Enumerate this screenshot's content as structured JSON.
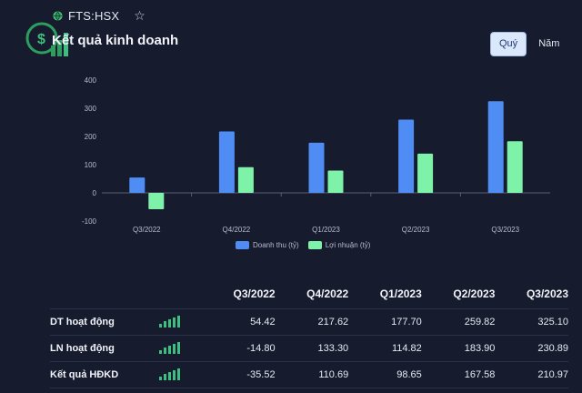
{
  "header": {
    "ticker": "FTS:HSX",
    "globe_icon": "globe-icon",
    "favorite_icon": "star-outline-icon"
  },
  "page": {
    "title": "Kết quả kinh doanh"
  },
  "period_toggle": {
    "options": [
      "Quý",
      "Năm"
    ],
    "selected": "Quý"
  },
  "colors": {
    "revenue": "#4f8df5",
    "profit": "#7ef2a8",
    "background": "#161b2e",
    "sparkline": "#3fbf7f"
  },
  "chart_data": {
    "type": "bar",
    "categories": [
      "Q3/2022",
      "Q4/2022",
      "Q1/2023",
      "Q2/2023",
      "Q3/2023"
    ],
    "series": [
      {
        "name": "Doanh thu (tỷ)",
        "values": [
          54.42,
          217.62,
          177.7,
          259.82,
          325.1
        ]
      },
      {
        "name": "Lợi nhuận (tỷ)",
        "values": [
          -58,
          91,
          79,
          139,
          183
        ]
      }
    ],
    "yticks": [
      -100,
      0,
      100,
      200,
      300,
      400
    ],
    "ylim": [
      -100,
      400
    ],
    "legend": "bottom-center",
    "grid": false
  },
  "table": {
    "headers": [
      "Q3/2022",
      "Q4/2022",
      "Q1/2023",
      "Q2/2023",
      "Q3/2023"
    ],
    "rows": [
      {
        "label": "DT hoạt động",
        "values": [
          "54.42",
          "217.62",
          "177.70",
          "259.82",
          "325.10"
        ]
      },
      {
        "label": "LN hoạt động",
        "values": [
          "-14.80",
          "133.30",
          "114.82",
          "183.90",
          "230.89"
        ]
      },
      {
        "label": "Kết quả HĐKD",
        "values": [
          "-35.52",
          "110.69",
          "98.65",
          "167.58",
          "210.97"
        ]
      }
    ]
  }
}
